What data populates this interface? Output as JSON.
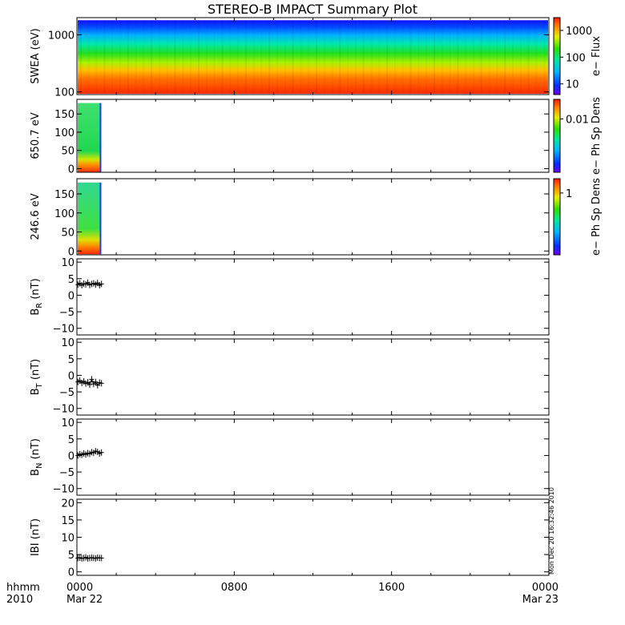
{
  "chart_data": {
    "type": "line",
    "title": "STEREO-B IMPACT Summary Plot",
    "x_axis": {
      "label_line1": "hhmm",
      "label_line2": "2010",
      "ticks": [
        {
          "t": 0,
          "top": "0000",
          "bottom": "Mar 22"
        },
        {
          "t": 8,
          "top": "0800",
          "bottom": ""
        },
        {
          "t": 16,
          "top": "1600",
          "bottom": ""
        },
        {
          "t": 24,
          "top": "0000",
          "bottom": "Mar 23"
        }
      ],
      "range_hours": [
        0,
        24
      ]
    },
    "panels": [
      {
        "id": "swea",
        "kind": "spectrogram",
        "ylabel": "SWEA (eV)",
        "yscale": "log",
        "yrange": [
          90,
          2000
        ],
        "yticks": [
          {
            "v": 1000,
            "label": "1000"
          },
          {
            "v": 100,
            "label": "100"
          }
        ],
        "colorbar": {
          "label": "e− Flux",
          "scale": "log",
          "range": [
            4,
            3000
          ],
          "ticks": [
            {
              "v": 1000,
              "label": "1000"
            },
            {
              "v": 100,
              "label": "100"
            },
            {
              "v": 10,
              "label": "10"
            }
          ]
        },
        "x_coverage_hours": [
          0,
          24
        ],
        "energy_top_eV": 1800
      },
      {
        "id": "pad650",
        "kind": "spectrogram",
        "ylabel": "650.7 eV",
        "yscale": "linear",
        "yrange": [
          -10,
          190
        ],
        "yticks": [
          {
            "v": 0,
            "label": "0"
          },
          {
            "v": 50,
            "label": "50"
          },
          {
            "v": 100,
            "label": "100"
          },
          {
            "v": 150,
            "label": "150"
          }
        ],
        "colorbar": {
          "label": "e− Ph Sp Dens",
          "scale": "log",
          "range": [
            0.0005,
            0.03
          ],
          "ticks": [
            {
              "v": 0.01,
              "label": "0.01"
            }
          ]
        },
        "x_coverage_hours": [
          0,
          1.2
        ],
        "pitch_top": 180
      },
      {
        "id": "pad246",
        "kind": "spectrogram",
        "ylabel": "246.6 eV",
        "yscale": "linear",
        "yrange": [
          -10,
          190
        ],
        "yticks": [
          {
            "v": 0,
            "label": "0"
          },
          {
            "v": 50,
            "label": "50"
          },
          {
            "v": 100,
            "label": "100"
          },
          {
            "v": 150,
            "label": "150"
          }
        ],
        "colorbar": {
          "label": "e− Ph Sp Dens",
          "scale": "log",
          "range": [
            0.05,
            2
          ],
          "ticks": [
            {
              "v": 1,
              "label": "1"
            }
          ]
        },
        "x_coverage_hours": [
          0,
          1.2
        ],
        "pitch_top": 180
      },
      {
        "id": "br",
        "kind": "points",
        "ylabel_main": "B",
        "ylabel_sub": "R",
        "ylabel_unit": " (nT)",
        "yrange": [
          -12,
          11
        ],
        "yticks": [
          {
            "v": 10,
            "label": "10"
          },
          {
            "v": 5,
            "label": "5"
          },
          {
            "v": 0,
            "label": "0"
          },
          {
            "v": -5,
            "label": "−5"
          },
          {
            "v": -10,
            "label": "−10"
          }
        ],
        "x": [
          0.05,
          0.15,
          0.25,
          0.35,
          0.45,
          0.55,
          0.65,
          0.75,
          0.85,
          0.95,
          1.05,
          1.15,
          1.25
        ],
        "y": [
          3.2,
          3.6,
          3.0,
          3.5,
          3.3,
          3.8,
          3.1,
          3.4,
          3.6,
          3.2,
          3.7,
          3.0,
          3.4
        ]
      },
      {
        "id": "bt",
        "kind": "points",
        "ylabel_main": "B",
        "ylabel_sub": "T",
        "ylabel_unit": " (nT)",
        "yrange": [
          -12,
          11
        ],
        "yticks": [
          {
            "v": 10,
            "label": "10"
          },
          {
            "v": 5,
            "label": "5"
          },
          {
            "v": 0,
            "label": "0"
          },
          {
            "v": -5,
            "label": "−5"
          },
          {
            "v": -10,
            "label": "−10"
          }
        ],
        "x": [
          0.05,
          0.15,
          0.25,
          0.35,
          0.45,
          0.55,
          0.65,
          0.75,
          0.85,
          0.95,
          1.05,
          1.15,
          1.25
        ],
        "y": [
          -2.0,
          -1.6,
          -2.3,
          -1.8,
          -2.5,
          -2.1,
          -2.8,
          -1.2,
          -2.6,
          -2.0,
          -3.0,
          -2.2,
          -2.4
        ]
      },
      {
        "id": "bn",
        "kind": "points",
        "ylabel_main": "B",
        "ylabel_sub": "N",
        "ylabel_unit": " (nT)",
        "yrange": [
          -12,
          11
        ],
        "yticks": [
          {
            "v": 10,
            "label": "10"
          },
          {
            "v": 5,
            "label": "5"
          },
          {
            "v": 0,
            "label": "0"
          },
          {
            "v": -5,
            "label": "−5"
          },
          {
            "v": -10,
            "label": "−10"
          }
        ],
        "x": [
          0.05,
          0.15,
          0.25,
          0.35,
          0.45,
          0.55,
          0.65,
          0.75,
          0.85,
          0.95,
          1.05,
          1.15,
          1.25
        ],
        "y": [
          0.0,
          0.4,
          0.2,
          0.6,
          0.3,
          0.7,
          0.5,
          1.0,
          0.8,
          1.3,
          1.1,
          0.6,
          0.9
        ]
      },
      {
        "id": "bmag",
        "kind": "points",
        "ylabel_main": "IBI",
        "ylabel_sub": "",
        "ylabel_unit": " (nT)",
        "yrange": [
          -1,
          21
        ],
        "yticks": [
          {
            "v": 20,
            "label": "20"
          },
          {
            "v": 15,
            "label": "15"
          },
          {
            "v": 10,
            "label": "10"
          },
          {
            "v": 5,
            "label": "5"
          },
          {
            "v": 0,
            "label": "0"
          }
        ],
        "x": [
          0.05,
          0.15,
          0.25,
          0.35,
          0.45,
          0.55,
          0.65,
          0.75,
          0.85,
          0.95,
          1.05,
          1.15,
          1.25
        ],
        "y": [
          4.0,
          4.1,
          3.9,
          4.0,
          4.2,
          3.9,
          4.0,
          4.1,
          4.0,
          3.9,
          4.1,
          4.0,
          4.0
        ]
      }
    ],
    "side_stamp": "Mon Dec 20 16:32:46 2010"
  }
}
